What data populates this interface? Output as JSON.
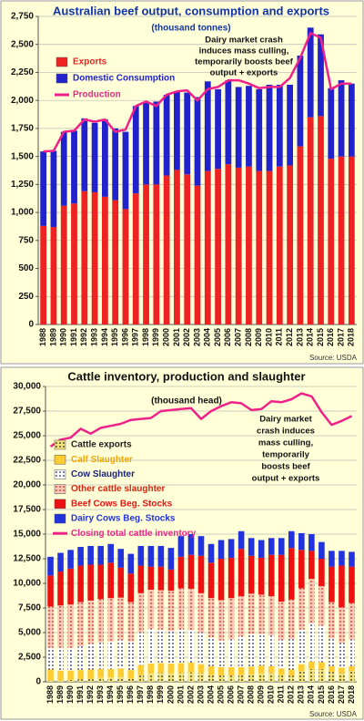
{
  "chart_data": [
    {
      "type": "bar",
      "stacked": true,
      "title": "Australian beef output, consumption and exports",
      "subtitle": "(thousand tonnes)",
      "title_color": "#1133aa",
      "categories": [
        "1988",
        "1989",
        "1990",
        "1991",
        "1992",
        "1993",
        "1994",
        "1995",
        "1996",
        "1997",
        "1998",
        "1999",
        "2000",
        "2001",
        "2002",
        "2003",
        "2004",
        "2005",
        "2006",
        "2007",
        "2008",
        "2009",
        "2010",
        "2011",
        "2012",
        "2013",
        "2014",
        "2015",
        "2016",
        "2017",
        "2018"
      ],
      "series": [
        {
          "name": "Exports",
          "color": "#ee2222",
          "pattern": "solid",
          "values": [
            880,
            870,
            1060,
            1080,
            1190,
            1180,
            1140,
            1110,
            1030,
            1170,
            1250,
            1250,
            1330,
            1380,
            1340,
            1240,
            1370,
            1390,
            1430,
            1400,
            1410,
            1370,
            1370,
            1410,
            1420,
            1590,
            1850,
            1860,
            1480,
            1500,
            1500
          ]
        },
        {
          "name": "Domestic Consumption",
          "color": "#2222cc",
          "pattern": "solid",
          "values": [
            665,
            680,
            660,
            650,
            650,
            620,
            690,
            640,
            690,
            780,
            740,
            740,
            720,
            700,
            730,
            790,
            800,
            710,
            750,
            720,
            720,
            730,
            770,
            730,
            720,
            810,
            800,
            730,
            630,
            680,
            650
          ]
        },
        {
          "name": "Production",
          "color": "#ee2288",
          "type": "line",
          "values": [
            1545,
            1550,
            1720,
            1730,
            1830,
            1810,
            1830,
            1720,
            1740,
            1950,
            1990,
            1950,
            2050,
            2080,
            2090,
            2000,
            2100,
            2120,
            2180,
            2180,
            2150,
            2110,
            2120,
            2120,
            2200,
            2380,
            2600,
            2560,
            2100,
            2150,
            2150
          ]
        }
      ],
      "ylim": [
        0,
        2750
      ],
      "yticks": [
        0,
        250,
        500,
        750,
        {
          "value": 1000,
          "label": "1,000"
        },
        {
          "value": 1250,
          "label": "1,250"
        },
        {
          "value": 1500,
          "label": "1,500"
        },
        {
          "value": 1750,
          "label": "1,750"
        },
        {
          "value": 2000,
          "label": "2,000"
        },
        {
          "value": 2250,
          "label": "2,250"
        },
        {
          "value": 2500,
          "label": "2,500"
        },
        {
          "value": 2750,
          "label": "2,750"
        }
      ],
      "grid": true,
      "legend": "upper left",
      "annotation": [
        "Dairy market crash",
        "induces mass culling,",
        "temporarily boosts beef",
        "output + exports"
      ],
      "source": "Source: USDA"
    },
    {
      "type": "bar",
      "stacked": true,
      "title": "Cattle inventory, production and slaughter",
      "subtitle": "(thousand head)",
      "title_color": "#111111",
      "categories": [
        "1988",
        "1989",
        "1990",
        "1991",
        "1992",
        "1993",
        "1994",
        "1995",
        "1996",
        "1997",
        "1998",
        "1999",
        "2000",
        "2001",
        "2002",
        "2003",
        "2004",
        "2005",
        "2006",
        "2007",
        "2008",
        "2009",
        "2010",
        "2011",
        "2012",
        "2013",
        "2014",
        "2015",
        "2016",
        "2017",
        "2018"
      ],
      "series": [
        {
          "name": "Cattle exports",
          "color": "#222222",
          "background": "#f3e27a",
          "pattern": "dots",
          "values": [
            150,
            150,
            200,
            250,
            300,
            400,
            450,
            500,
            300,
            700,
            850,
            900,
            850,
            900,
            950,
            900,
            700,
            650,
            650,
            700,
            750,
            850,
            900,
            700,
            600,
            1100,
            1300,
            1300,
            1000,
            900,
            1100
          ]
        },
        {
          "name": "Calf Slaughter",
          "color": "#f0a800",
          "background": "#ffcc33",
          "pattern": "solid",
          "values": [
            1100,
            1000,
            950,
            950,
            950,
            900,
            850,
            850,
            900,
            1000,
            1000,
            1000,
            1000,
            1000,
            1000,
            900,
            900,
            850,
            850,
            800,
            800,
            800,
            700,
            650,
            650,
            700,
            750,
            700,
            600,
            550,
            500
          ]
        },
        {
          "name": "Cow Slaughter",
          "color": "#1a237e",
          "background": "#ffffff",
          "pattern": "dots",
          "values": [
            2200,
            2300,
            2300,
            2400,
            2600,
            2700,
            2800,
            2900,
            2900,
            3300,
            3500,
            3400,
            3300,
            3400,
            3300,
            3200,
            2900,
            2700,
            2800,
            3100,
            3300,
            3200,
            3100,
            2900,
            3100,
            3500,
            3900,
            3700,
            2800,
            2500,
            2700
          ]
        },
        {
          "name": "Other cattle slaughter",
          "color": "#dd2211",
          "background": "#f6c9b8",
          "pattern": "dots",
          "values": [
            4200,
            4300,
            4400,
            4500,
            4400,
            4400,
            4400,
            4300,
            4000,
            4000,
            4000,
            4000,
            4100,
            4200,
            4200,
            4000,
            4000,
            4100,
            4200,
            4100,
            4100,
            4000,
            4000,
            3900,
            4000,
            4200,
            4500,
            4000,
            3700,
            3600,
            3700
          ]
        },
        {
          "name": "Beef Cows Beg. Stocks",
          "color": "#ee1111",
          "background": "#ee1111",
          "pattern": "solid",
          "values": [
            3150,
            3450,
            3650,
            3700,
            3650,
            3500,
            3600,
            3050,
            2900,
            2800,
            2350,
            2400,
            2150,
            3200,
            3450,
            3800,
            3600,
            4200,
            4100,
            4800,
            3850,
            3750,
            4200,
            4750,
            5250,
            3900,
            2850,
            2800,
            3600,
            4250,
            3700
          ]
        },
        {
          "name": "Dairy Cows Beg. Stocks",
          "color": "#2233dd",
          "background": "#2233dd",
          "pattern": "solid",
          "values": [
            1900,
            1900,
            1900,
            1900,
            1900,
            1900,
            1900,
            1900,
            2000,
            2000,
            2100,
            2100,
            2200,
            2100,
            2100,
            2000,
            1900,
            1900,
            1900,
            1800,
            1800,
            1800,
            1700,
            1700,
            1700,
            1700,
            1700,
            1700,
            1600,
            1500,
            1500
          ]
        },
        {
          "name": "Closing total cattle inventory",
          "color": "#ee2288",
          "type": "line",
          "values": [
            23900,
            24600,
            24800,
            25700,
            25200,
            25800,
            26000,
            26200,
            26600,
            26700,
            26800,
            27500,
            27600,
            27700,
            27800,
            26700,
            27500,
            28000,
            28400,
            28300,
            27600,
            27700,
            28500,
            28400,
            28700,
            29300,
            29000,
            27400,
            26100,
            26500,
            27000
          ]
        }
      ],
      "ylim": [
        0,
        30000
      ],
      "yticks": [
        0,
        {
          "value": 2500,
          "label": "2,500"
        },
        {
          "value": 5000,
          "label": "5,000"
        },
        {
          "value": 7500,
          "label": "7,500"
        },
        {
          "value": 10000,
          "label": "10,000"
        },
        {
          "value": 12500,
          "label": "12,500"
        },
        {
          "value": 15000,
          "label": "15,000"
        },
        {
          "value": 17500,
          "label": "17,500"
        },
        {
          "value": 20000,
          "label": "20,000"
        },
        {
          "value": 22500,
          "label": "22,500"
        },
        {
          "value": 25000,
          "label": "25,000"
        },
        {
          "value": 27500,
          "label": "27,500"
        },
        {
          "value": 30000,
          "label": "30,000"
        }
      ],
      "grid": true,
      "legend": "middle left",
      "annotation": [
        "Dairy market",
        "crash induces",
        "mass culling,",
        "temporarily",
        "boosts beef",
        "output + exports"
      ],
      "source": "Source: USDA"
    }
  ]
}
